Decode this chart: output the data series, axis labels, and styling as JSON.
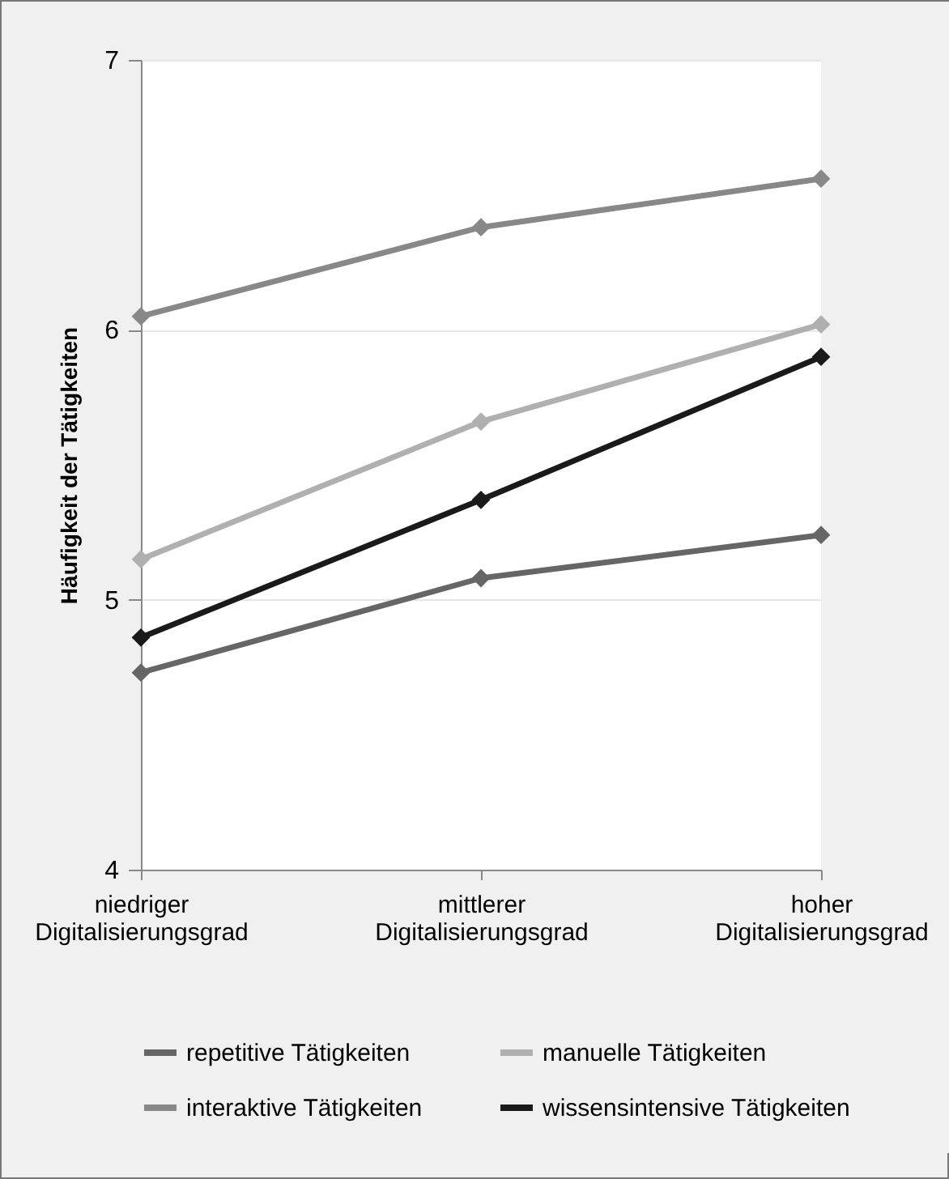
{
  "chart_data": {
    "type": "line",
    "ylabel": "Häufigkeit der Tätigkeiten",
    "categories": [
      "niedriger\nDigitalisierungsgrad",
      "mittlerer\nDigitalisierungsgrad",
      "hoher\nDigitalisierungsgrad"
    ],
    "series": [
      {
        "name": "repetitive Tätigkeiten",
        "color": "#666666",
        "values": [
          4.73,
          5.08,
          5.24
        ]
      },
      {
        "name": "manuelle Tätigkeiten",
        "color": "#b0b0b0",
        "values": [
          5.15,
          5.66,
          6.02
        ]
      },
      {
        "name": "interaktive Tätigkeiten",
        "color": "#888888",
        "values": [
          6.05,
          6.38,
          6.56
        ]
      },
      {
        "name": "wissensintensive Tätigkeiten",
        "color": "#1a1a1a",
        "values": [
          4.86,
          5.37,
          5.9
        ]
      }
    ],
    "ylim": [
      4,
      7
    ],
    "yticks": [
      4,
      5,
      6,
      7
    ],
    "grid": "y",
    "legend": "bottom",
    "marker": "diamond",
    "line_style": "solid"
  }
}
